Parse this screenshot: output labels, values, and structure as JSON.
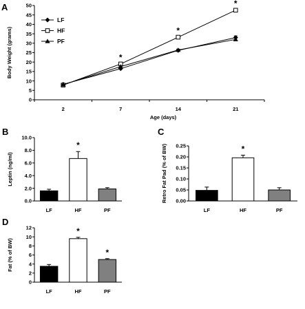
{
  "chart_data": [
    {
      "panel": "A",
      "type": "line",
      "xlabel": "Age (days)",
      "ylabel": "Body Weight (grams)",
      "categories": [
        "2",
        "7",
        "14",
        "21"
      ],
      "ylim": [
        0,
        50
      ],
      "yticks": [
        "0",
        "5",
        "10",
        "15",
        "20",
        "25",
        "30",
        "35",
        "40",
        "45",
        "50"
      ],
      "legend_position": "top-left",
      "series": [
        {
          "name": "LF",
          "marker": "diamond-filled",
          "values": [
            8.2,
            16.5,
            26.2,
            33.0
          ],
          "err": [
            0.3,
            0.5,
            0.5,
            0.9
          ]
        },
        {
          "name": "HF",
          "marker": "square-open",
          "values": [
            7.8,
            19.0,
            33.2,
            47.5
          ],
          "err": [
            0.3,
            0.5,
            0.6,
            0.6
          ]
        },
        {
          "name": "PF",
          "marker": "triangle-filled",
          "values": [
            8.0,
            17.6,
            26.4,
            32.0
          ],
          "err": [
            0.3,
            0.5,
            0.5,
            0.8
          ]
        }
      ],
      "annotations": [
        "*",
        "*",
        "*"
      ],
      "annotation_x": [
        "7",
        "14",
        "21"
      ]
    },
    {
      "panel": "B",
      "type": "bar",
      "ylabel": "Leptin (ng/ml)",
      "categories": [
        "LF",
        "HF",
        "PF"
      ],
      "values": [
        1.6,
        6.7,
        1.9
      ],
      "err": [
        0.25,
        1.1,
        0.2
      ],
      "bar_colors": [
        "#000000",
        "#ffffff",
        "#808080"
      ],
      "ylim": [
        0,
        10
      ],
      "yticks": [
        "0.0",
        "2.0",
        "4.0",
        "6.0",
        "8.0",
        "10.0"
      ],
      "significant": [
        false,
        true,
        false
      ]
    },
    {
      "panel": "C",
      "type": "bar",
      "ylabel": "Retro Fat Pad (% of BW)",
      "categories": [
        "LF",
        "HF",
        "PF"
      ],
      "values": [
        0.048,
        0.196,
        0.05
      ],
      "err": [
        0.015,
        0.012,
        0.01
      ],
      "bar_colors": [
        "#000000",
        "#ffffff",
        "#808080"
      ],
      "ylim": [
        0,
        0.25
      ],
      "yticks": [
        "0.00",
        "0.05",
        "0.10",
        "0.15",
        "0.20",
        "0.25"
      ],
      "significant": [
        false,
        true,
        false
      ]
    },
    {
      "panel": "D",
      "type": "bar",
      "ylabel": "Fat (% of BW)",
      "categories": [
        "LF",
        "HF",
        "PF"
      ],
      "values": [
        3.5,
        9.6,
        5.0
      ],
      "err": [
        0.4,
        0.3,
        0.2
      ],
      "bar_colors": [
        "#000000",
        "#ffffff",
        "#808080"
      ],
      "ylim": [
        0,
        12
      ],
      "yticks": [
        "0",
        "2",
        "4",
        "6",
        "8",
        "10",
        "12"
      ],
      "significant": [
        false,
        true,
        true
      ]
    }
  ]
}
